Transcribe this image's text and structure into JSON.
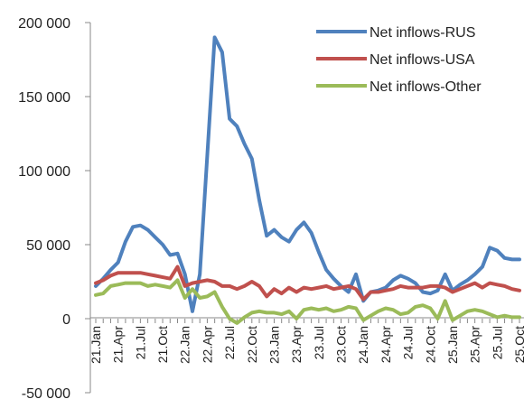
{
  "chart_data": {
    "type": "line",
    "title": "",
    "xlabel": "",
    "ylabel": "",
    "ylim": [
      -50000,
      200000
    ],
    "yticks": [
      -50000,
      0,
      50000,
      100000,
      150000,
      200000
    ],
    "ytick_labels": [
      "-50 000",
      "0",
      "50 000",
      "100 000",
      "150 000",
      "200 000"
    ],
    "x_tick_labels": [
      "21.Jan",
      "21.Apr",
      "21.Jul",
      "21.Oct",
      "22.Jan",
      "22.Apr",
      "22.Jul",
      "22.Oct",
      "23.Jan",
      "23.Apr",
      "23.Jul",
      "23.Oct",
      "24.Jan",
      "24.Apr",
      "24.Jul",
      "24.Oct",
      "25.Jan",
      "25.Apr",
      "25.Jul",
      "25.Oct"
    ],
    "grid": false,
    "legend": "top-right",
    "x": [
      "21.Jan",
      "21.Feb",
      "21.Mar",
      "21.Apr",
      "21.May",
      "21.Jun",
      "21.Jul",
      "21.Aug",
      "21.Sep",
      "21.Oct",
      "21.Nov",
      "21.Dec",
      "22.Jan",
      "22.Feb",
      "22.Mar",
      "22.Apr",
      "22.May",
      "22.Jun",
      "22.Jul",
      "22.Aug",
      "22.Sep",
      "22.Oct",
      "22.Nov",
      "22.Dec",
      "23.Jan",
      "23.Feb",
      "23.Mar",
      "23.Apr",
      "23.May",
      "23.Jun",
      "23.Jul",
      "23.Aug",
      "23.Sep",
      "23.Oct",
      "23.Nov",
      "23.Dec",
      "24.Jan",
      "24.Feb",
      "24.Mar",
      "24.Apr",
      "24.May",
      "24.Jun",
      "24.Jul",
      "24.Aug",
      "24.Sep",
      "24.Oct",
      "24.Nov",
      "24.Dec",
      "25.Jan",
      "25.Feb",
      "25.Mar",
      "25.Apr",
      "25.May",
      "25.Jun",
      "25.Jul",
      "25.Aug",
      "25.Sep",
      "25.Oct"
    ],
    "series": [
      {
        "name": "Net inflows-RUS",
        "color": "#4f81bd",
        "values": [
          22000,
          27000,
          33000,
          38000,
          52000,
          62000,
          63000,
          60000,
          55000,
          50000,
          43000,
          44000,
          30000,
          5000,
          30000,
          110000,
          190000,
          180000,
          135000,
          130000,
          118000,
          108000,
          80000,
          56000,
          60000,
          55000,
          52000,
          60000,
          65000,
          58000,
          45000,
          33000,
          27000,
          22000,
          18000,
          30000,
          12000,
          18000,
          19000,
          21000,
          26000,
          29000,
          27000,
          24000,
          18000,
          17000,
          19000,
          30000,
          19000,
          23000,
          26000,
          30000,
          35000,
          48000,
          46000,
          41000,
          40000,
          40000
        ]
      },
      {
        "name": "Net inflows-USA",
        "color": "#c0504d",
        "values": [
          24000,
          26000,
          29000,
          31000,
          31000,
          31000,
          31000,
          30000,
          29000,
          28000,
          27000,
          35000,
          22000,
          24000,
          25000,
          26000,
          25000,
          22000,
          22000,
          20000,
          22000,
          25000,
          22000,
          15000,
          20000,
          17000,
          21000,
          18000,
          21000,
          20000,
          21000,
          22000,
          20000,
          21000,
          22000,
          20000,
          13000,
          18000,
          18000,
          19000,
          20000,
          22000,
          21000,
          21000,
          21000,
          22000,
          22000,
          21000,
          18000,
          20000,
          22000,
          24000,
          21000,
          24000,
          23000,
          22000,
          20000,
          19000
        ]
      },
      {
        "name": "Net inflows-Other",
        "color": "#9bbb59",
        "values": [
          16000,
          17000,
          22000,
          23000,
          24000,
          24000,
          24000,
          22000,
          23000,
          22000,
          21000,
          26000,
          14000,
          20000,
          14000,
          15000,
          18000,
          8000,
          0,
          -3000,
          1000,
          4000,
          5000,
          4000,
          4000,
          3000,
          5000,
          0,
          6000,
          7000,
          6000,
          7000,
          5000,
          6000,
          8000,
          7000,
          -1000,
          2000,
          5000,
          7000,
          6000,
          3000,
          4000,
          8000,
          9000,
          7000,
          0,
          12000,
          -1000,
          2000,
          5000,
          6000,
          5000,
          3000,
          1000,
          2000,
          1000,
          1000
        ]
      }
    ]
  }
}
